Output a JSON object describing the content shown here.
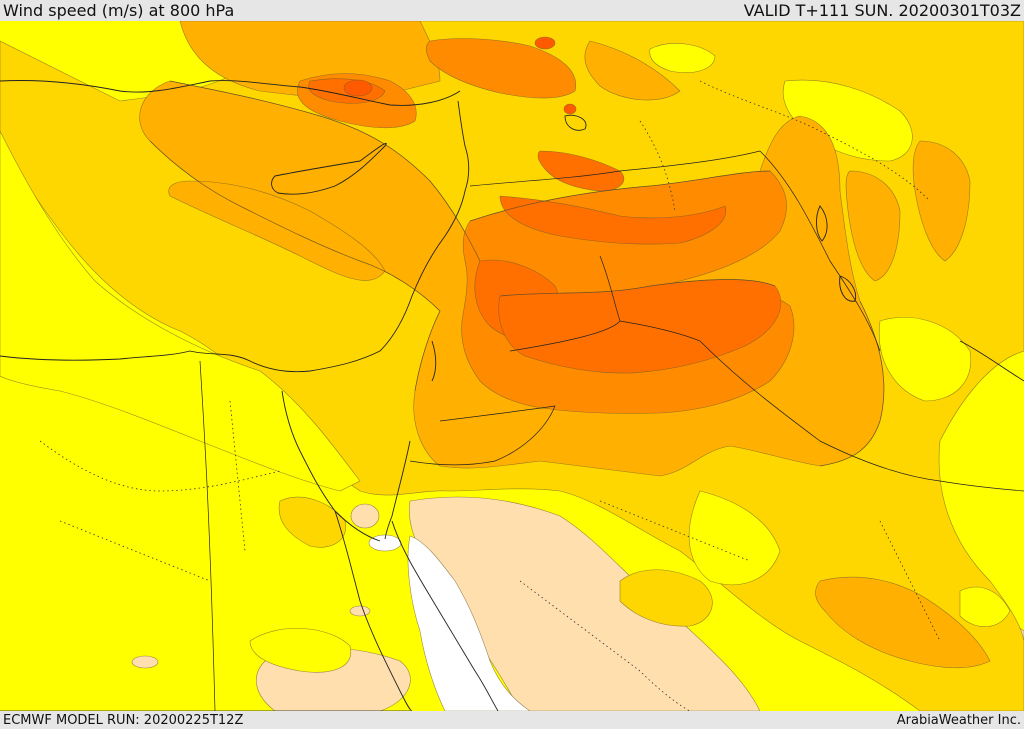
{
  "header": {
    "title": "Wind speed (m/s) at 800 hPa",
    "valid_time": "VALID T+111 SUN. 20200301T03Z"
  },
  "footer": {
    "model_run": "ECMWF MODEL RUN: 20200225T12Z",
    "credit": "ArabiaWeather Inc."
  },
  "map": {
    "variable": "wind speed",
    "units": "m/s",
    "level": "800 hPa",
    "colors": {
      "none": "#ffffff",
      "weak": "#ffdfae",
      "light": "#ffff00",
      "moderate": "#ffd700",
      "fresh": "#ffb000",
      "strong": "#ff8c00",
      "very_strong": "#ff7000",
      "extreme": "#ff5a00"
    }
  }
}
